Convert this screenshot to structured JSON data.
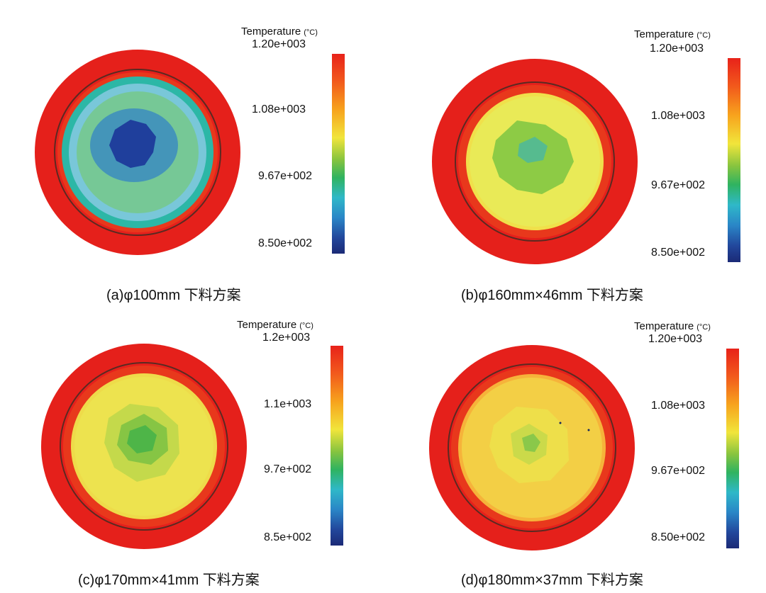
{
  "legend_unit": "(°C)",
  "panels": [
    {
      "caption": "(a)φ100mm 下料方案",
      "legend_title": "Temperature",
      "ticks": [
        "1.20e+003",
        "1.08e+003",
        "9.67e+002",
        "8.50e+002"
      ],
      "colors": {
        "outer": "#e5201b",
        "ring": "#e8381c",
        "rim": "#2cb7a6",
        "body": "#79c7d9",
        "mid": "#74c85e",
        "core": "#1f3f9c",
        "core_edge": "#2f7fc7"
      }
    },
    {
      "caption": "(b)φ160mm×46mm 下料方案",
      "legend_title": "Temperature",
      "ticks": [
        "1.20e+003",
        "1.08e+003",
        "9.67e+002",
        "8.50e+002"
      ],
      "colors": {
        "outer": "#e5201b",
        "ring": "#e8381c",
        "rim": "#f0e04b",
        "body": "#e9ea57",
        "mid": "#8dcb45",
        "core": "#56bb8f",
        "core_edge": "#7ec64a"
      }
    },
    {
      "caption": "(c)φ170mm×41mm 下料方案",
      "legend_title": "Temperature",
      "ticks": [
        "1.2e+003",
        "1.1e+003",
        "9.7e+002",
        "8.5e+002"
      ],
      "colors": {
        "outer": "#e5201b",
        "ring": "#e8381c",
        "rim": "#eedb4a",
        "body": "#ede34f",
        "mid": "#b9d64a",
        "core": "#4eb548",
        "core_edge": "#86c544"
      }
    },
    {
      "caption": "(d)φ180mm×37mm 下料方案",
      "legend_title": "Temperature",
      "ticks": [
        "1.20e+003",
        "1.08e+003",
        "9.67e+002",
        "8.50e+002"
      ],
      "colors": {
        "outer": "#e5201b",
        "ring": "#e8381c",
        "rim": "#f6b33a",
        "body": "#f3cf45",
        "mid": "#ece44c",
        "core": "#8ac84a",
        "core_edge": "#c4d94a"
      }
    }
  ]
}
